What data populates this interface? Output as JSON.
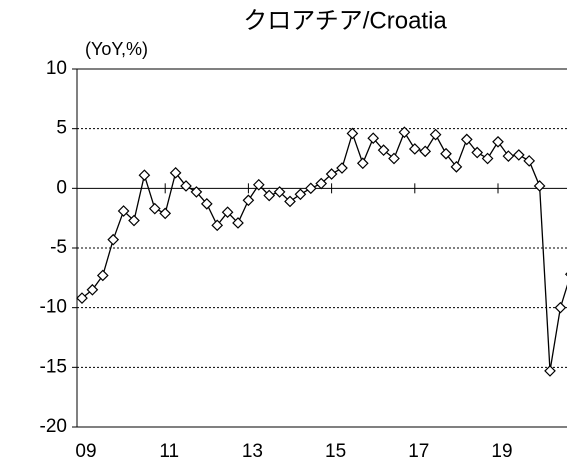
{
  "chart_data": {
    "type": "line",
    "title": "クロアチア/Croatia",
    "y_label": "(YoY,%)",
    "categories": [
      "09",
      null,
      null,
      null,
      null,
      null,
      null,
      null,
      "11",
      null,
      null,
      null,
      null,
      null,
      null,
      null,
      "13",
      null,
      null,
      null,
      null,
      null,
      null,
      null,
      "15",
      null,
      null,
      null,
      null,
      null,
      null,
      null,
      "17",
      null,
      null,
      null,
      null,
      null,
      null,
      null,
      "19",
      null,
      null,
      null,
      null,
      null,
      null,
      null
    ],
    "series": [
      {
        "name": "Croatia",
        "color": "#000000",
        "values": [
          -9.2,
          -8.5,
          -7.3,
          -4.3,
          -1.9,
          -2.7,
          1.1,
          -1.7,
          -2.1,
          1.3,
          0.2,
          -0.3,
          -1.3,
          -3.1,
          -2.0,
          -2.9,
          -1.0,
          0.3,
          -0.6,
          -0.3,
          -1.1,
          -0.5,
          0.0,
          0.4,
          1.2,
          1.7,
          4.6,
          2.1,
          4.2,
          3.2,
          2.5,
          4.7,
          3.3,
          3.1,
          4.5,
          2.9,
          1.8,
          4.1,
          3.0,
          2.5,
          3.9,
          2.7,
          2.8,
          2.3,
          0.2,
          -15.3,
          -10.0,
          -7.2
        ]
      }
    ],
    "ylim": [
      -20,
      10
    ],
    "yticks": [
      -20,
      -15,
      -10,
      -5,
      0,
      5,
      10
    ],
    "grid": true
  }
}
